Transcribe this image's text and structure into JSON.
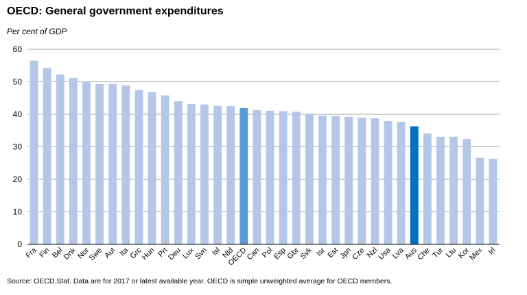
{
  "title": "OECD: General government expenditures",
  "subtitle": "Per cent of GDP",
  "source": "Source: OECD.Stat.  Data are for 2017 or latest available year.  OECD is simple unweighted average for OECD members.",
  "colors": {
    "default_bar": "#b4c7e7",
    "oecd_bar": "#5b9bd5",
    "aus_bar": "#0070c0",
    "gridline": "#a6a6a6",
    "axis": "#000000"
  },
  "chart_data": {
    "type": "bar",
    "title": "OECD: General government expenditures",
    "subtitle": "Per cent of GDP",
    "xlabel": "",
    "ylabel": "",
    "ylim": [
      0,
      60
    ],
    "yticks": [
      0,
      10,
      20,
      30,
      40,
      50,
      60
    ],
    "grid": true,
    "legend": "none",
    "highlight": {
      "OECD": "#5b9bd5",
      "Aus": "#0070c0"
    },
    "categories": [
      "Fra",
      "Fin",
      "Bel",
      "Dnk",
      "Nor",
      "Swe",
      "Aut",
      "Ita",
      "Grc",
      "Hun",
      "Prt",
      "Deu",
      "Lux",
      "Svn",
      "Isl",
      "Nld",
      "OECD",
      "Can",
      "Pol",
      "Esp",
      "Gbr",
      "Svk",
      "Isr",
      "Est",
      "Jpn",
      "Cze",
      "Nzl",
      "Usa",
      "Lva",
      "Aus",
      "Che",
      "Tur",
      "Ltu",
      "Kor",
      "Mex",
      "Irl"
    ],
    "values": [
      56.5,
      54.2,
      52.3,
      51.2,
      50.0,
      49.3,
      49.3,
      48.9,
      47.5,
      46.9,
      45.8,
      44.0,
      43.2,
      43.0,
      42.6,
      42.5,
      41.9,
      41.3,
      41.1,
      41.0,
      40.8,
      40.2,
      39.6,
      39.5,
      39.2,
      39.0,
      38.8,
      37.9,
      37.7,
      36.3,
      34.1,
      33.1,
      33.1,
      32.4,
      26.6,
      26.3
    ]
  }
}
